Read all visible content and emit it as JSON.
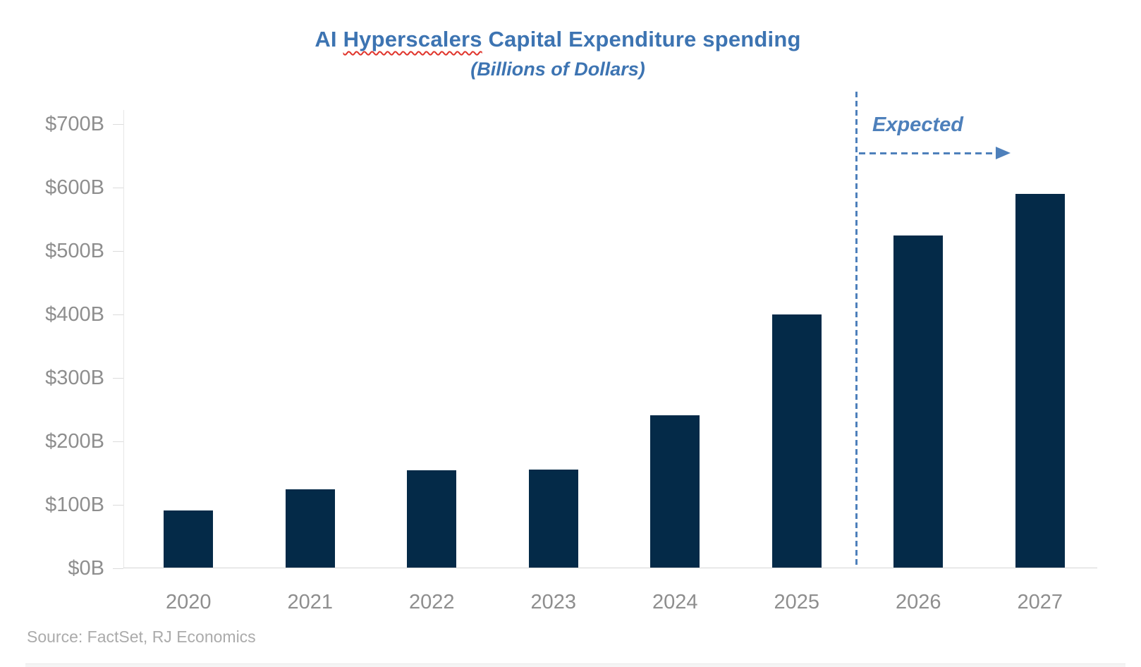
{
  "header": {
    "title_prefix": "AI ",
    "title_underlined_word": "Hyperscalers",
    "title_suffix": " Capital Expenditure spending",
    "subtitle": "(Billions of Dollars)",
    "title_color": "#3D74B2"
  },
  "annotation": {
    "expected_label": "Expected",
    "color": "#4E80BB"
  },
  "source": {
    "text": "Source: FactSet, RJ Economics",
    "color": "#ABABAB"
  },
  "chart_data": {
    "type": "bar",
    "title": "AI Hyperscalers Capital Expenditure spending",
    "subtitle": "(Billions of Dollars)",
    "categories": [
      "2020",
      "2021",
      "2022",
      "2023",
      "2024",
      "2025",
      "2026",
      "2027"
    ],
    "values": [
      91,
      124,
      154,
      156,
      241,
      400,
      525,
      590
    ],
    "unit": "USD billions",
    "xlabel": "",
    "ylabel": "",
    "ylim": [
      0,
      700
    ],
    "ytick_step": 100,
    "ytick_labels": [
      "$0B",
      "$100B",
      "$200B",
      "$300B",
      "$400B",
      "$500B",
      "$600B",
      "$700B"
    ],
    "bar_color": "#042A48",
    "grid": false,
    "legend": "none",
    "annotations": [
      {
        "text": "Expected",
        "applies_to_categories": [
          "2026",
          "2027"
        ],
        "style": "vertical dashed divider after 2025 with dashed right arrow"
      }
    ]
  }
}
